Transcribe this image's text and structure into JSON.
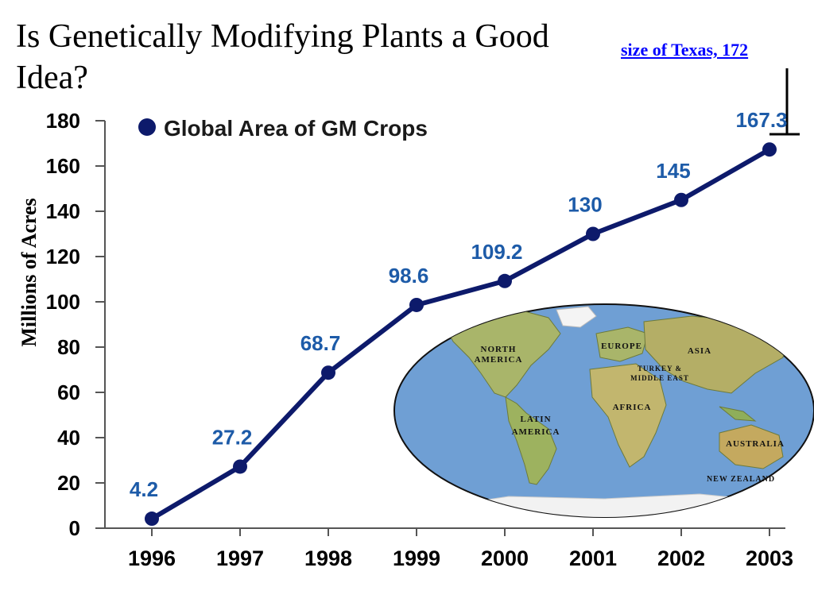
{
  "slide": {
    "title": "Is Genetically Modifying Plants a Good Idea?",
    "link_text": "size of Texas, 172"
  },
  "chart_data": {
    "type": "line",
    "legend": "Global Area of GM Crops",
    "ylabel": "Millions of Acres",
    "xlabel": "",
    "x": [
      "1996",
      "1997",
      "1998",
      "1999",
      "2000",
      "2001",
      "2002",
      "2003"
    ],
    "series": [
      {
        "name": "Global Area of GM Crops",
        "values": [
          4.2,
          27.2,
          68.7,
          98.6,
          109.2,
          130,
          145,
          167.3
        ]
      }
    ],
    "data_labels": [
      "4.2",
      "27.2",
      "68.7",
      "98.6",
      "109.2",
      "130",
      "145",
      "167.3"
    ],
    "ylim": [
      0,
      180
    ],
    "yticks": [
      0,
      20,
      40,
      60,
      80,
      100,
      120,
      140,
      160,
      180
    ],
    "line_color": "#0d1a6b",
    "label_color": "#1d5ba8",
    "grid": false,
    "legend_position": "top-left"
  },
  "map": {
    "labels": [
      "NORTH",
      "AMERICA",
      "EUROPE",
      "ASIA",
      "TURKEY &",
      "MIDDLE EAST",
      "AFRICA",
      "LATIN",
      "AMERICA",
      "AUSTRALIA",
      "NEW ZEALAND"
    ],
    "ocean_color": "#6f9fd4",
    "land_color": "#a9b56a"
  }
}
